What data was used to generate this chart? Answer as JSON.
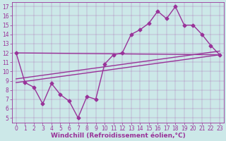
{
  "xlabel": "Windchill (Refroidissement éolien,°C)",
  "bg_color": "#cce8e8",
  "line_color": "#993399",
  "xlim": [
    -0.5,
    23.5
  ],
  "ylim": [
    4.5,
    17.5
  ],
  "xticks": [
    0,
    1,
    2,
    3,
    4,
    5,
    6,
    7,
    8,
    9,
    10,
    11,
    12,
    13,
    14,
    15,
    16,
    17,
    18,
    19,
    20,
    21,
    22,
    23
  ],
  "yticks": [
    5,
    6,
    7,
    8,
    9,
    10,
    11,
    12,
    13,
    14,
    15,
    16,
    17
  ],
  "zigzag_x": [
    0,
    1,
    2,
    3,
    4,
    5,
    6,
    7,
    8,
    9,
    10,
    11,
    12,
    13,
    14,
    15,
    16,
    17,
    18,
    19,
    20,
    21,
    22,
    23
  ],
  "zigzag_y": [
    12.0,
    8.8,
    8.3,
    6.5,
    8.7,
    7.5,
    6.8,
    5.0,
    7.3,
    7.0,
    10.8,
    11.8,
    12.0,
    14.0,
    14.5,
    15.2,
    16.5,
    15.7,
    17.0,
    15.0,
    15.0,
    14.0,
    12.8,
    11.8
  ],
  "trend1_x": [
    0,
    23
  ],
  "trend1_y": [
    8.8,
    11.8
  ],
  "trend2_x": [
    0,
    23
  ],
  "trend2_y": [
    9.2,
    12.2
  ],
  "trend3_x": [
    0,
    23
  ],
  "trend3_y": [
    12.0,
    11.8
  ],
  "marker": "D",
  "markersize": 2.5,
  "linewidth": 1.0,
  "fontsize_label": 6.5,
  "fontsize_tick": 5.5
}
